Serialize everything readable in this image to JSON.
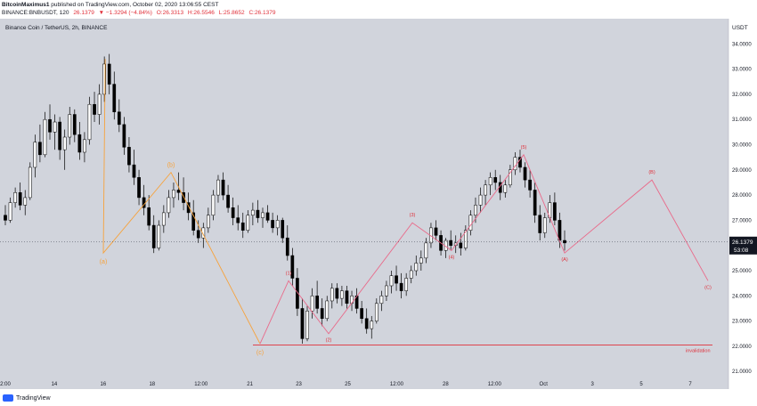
{
  "header": {
    "author": "BitcoinMaximus1",
    "published": "published on TradingView.com, October 02, 2020 13:06:55 CEST",
    "pair": "BINANCE:BNBUSDT, 120",
    "last": "26.1379",
    "change": "▼ −1.3294 (−4.84%)",
    "open": "O:26.3313",
    "high": "H:26.5546",
    "low": "L:25.8652",
    "close": "C:26.1379"
  },
  "footer": {
    "brand": "TradingView"
  },
  "chart_data": {
    "type": "candlestick",
    "title": "Binance Coin / TetherUS, 2h, BINANCE",
    "currency": "USDT",
    "ylim": [
      20.3,
      35.0
    ],
    "y_ticks": [
      "21.0000",
      "22.0000",
      "23.0000",
      "24.0000",
      "25.0000",
      "26.0000",
      "27.0000",
      "28.0000",
      "29.0000",
      "30.0000",
      "31.0000",
      "32.0000",
      "33.0000",
      "34.0000"
    ],
    "x_ticks": [
      "2:00",
      "14",
      "16",
      "18",
      "12:00",
      "21",
      "23",
      "25",
      "12:00",
      "28",
      "12:00",
      "Oct",
      "3",
      "5",
      "7"
    ],
    "price_label": "26.1379",
    "countdown_label": "53:08",
    "price_color": "#131722",
    "colors": {
      "up": "#ffffff",
      "down": "#000000",
      "orange": "#f7a23b",
      "pink": "#e96a8a",
      "red": "#e0303a",
      "background": "#d1d4dc"
    },
    "candles": [
      [
        27.2,
        27.6,
        26.8,
        27.0
      ],
      [
        27.0,
        27.9,
        26.9,
        27.7
      ],
      [
        27.7,
        28.3,
        27.5,
        28.1
      ],
      [
        28.1,
        28.5,
        27.4,
        27.6
      ],
      [
        27.6,
        28.2,
        27.2,
        27.9
      ],
      [
        27.9,
        29.3,
        27.8,
        29.1
      ],
      [
        29.1,
        30.4,
        28.7,
        30.1
      ],
      [
        30.1,
        30.8,
        29.3,
        29.6
      ],
      [
        29.6,
        31.3,
        29.5,
        31.0
      ],
      [
        31.0,
        31.6,
        30.2,
        30.5
      ],
      [
        30.5,
        31.2,
        29.8,
        30.9
      ],
      [
        30.9,
        31.1,
        29.4,
        29.8
      ],
      [
        29.8,
        30.6,
        29.0,
        30.3
      ],
      [
        30.3,
        31.5,
        30.0,
        31.2
      ],
      [
        31.2,
        31.4,
        30.1,
        30.4
      ],
      [
        30.4,
        30.9,
        29.4,
        29.7
      ],
      [
        29.7,
        30.5,
        29.3,
        30.2
      ],
      [
        30.2,
        31.9,
        30.0,
        31.6
      ],
      [
        31.6,
        32.1,
        30.9,
        31.2
      ],
      [
        31.2,
        32.4,
        30.8,
        32.0
      ],
      [
        32.0,
        33.5,
        31.7,
        33.2
      ],
      [
        33.2,
        33.6,
        32.0,
        32.4
      ],
      [
        32.4,
        32.9,
        31.0,
        31.3
      ],
      [
        31.3,
        31.8,
        30.5,
        30.8
      ],
      [
        30.8,
        31.1,
        29.6,
        29.9
      ],
      [
        29.9,
        30.3,
        28.9,
        29.2
      ],
      [
        29.2,
        29.8,
        28.4,
        28.7
      ],
      [
        28.7,
        29.0,
        27.6,
        27.9
      ],
      [
        27.9,
        28.4,
        27.2,
        27.5
      ],
      [
        27.5,
        28.0,
        26.6,
        26.8
      ],
      [
        26.8,
        27.2,
        25.7,
        25.9
      ],
      [
        25.9,
        27.0,
        25.8,
        26.8
      ],
      [
        26.8,
        27.6,
        26.5,
        27.3
      ],
      [
        27.3,
        28.2,
        27.1,
        27.9
      ],
      [
        27.9,
        28.5,
        27.5,
        28.2
      ],
      [
        28.2,
        28.9,
        27.8,
        28.1
      ],
      [
        28.1,
        28.7,
        27.4,
        27.7
      ],
      [
        27.7,
        28.1,
        27.0,
        27.3
      ],
      [
        27.3,
        27.8,
        26.4,
        26.6
      ],
      [
        26.6,
        27.0,
        26.1,
        26.3
      ],
      [
        26.3,
        26.9,
        25.9,
        26.7
      ],
      [
        26.7,
        27.5,
        26.5,
        27.2
      ],
      [
        27.2,
        28.2,
        27.0,
        28.0
      ],
      [
        28.0,
        28.8,
        27.7,
        28.6
      ],
      [
        28.6,
        28.9,
        27.8,
        28.0
      ],
      [
        28.0,
        28.4,
        27.3,
        27.5
      ],
      [
        27.5,
        27.9,
        26.8,
        27.1
      ],
      [
        27.1,
        27.6,
        26.6,
        26.9
      ],
      [
        26.9,
        27.3,
        26.3,
        26.6
      ],
      [
        26.6,
        27.4,
        26.5,
        27.2
      ],
      [
        27.2,
        27.7,
        26.8,
        27.4
      ],
      [
        27.4,
        27.8,
        26.9,
        27.1
      ],
      [
        27.1,
        27.5,
        26.7,
        27.3
      ],
      [
        27.3,
        27.6,
        26.9,
        27.0
      ],
      [
        27.0,
        27.3,
        26.5,
        26.7
      ],
      [
        26.7,
        27.2,
        26.4,
        27.0
      ],
      [
        27.0,
        27.1,
        26.1,
        26.3
      ],
      [
        26.3,
        26.8,
        25.4,
        25.6
      ],
      [
        25.6,
        25.9,
        24.4,
        24.7
      ],
      [
        24.7,
        25.1,
        23.2,
        23.5
      ],
      [
        23.5,
        23.9,
        22.1,
        22.3
      ],
      [
        22.3,
        23.6,
        22.2,
        23.4
      ],
      [
        23.4,
        24.3,
        23.1,
        24.0
      ],
      [
        24.0,
        24.6,
        23.3,
        23.5
      ],
      [
        23.5,
        23.9,
        22.8,
        23.1
      ],
      [
        23.1,
        24.0,
        23.0,
        23.8
      ],
      [
        23.8,
        24.5,
        23.5,
        24.3
      ],
      [
        24.3,
        24.5,
        23.7,
        23.9
      ],
      [
        23.9,
        24.4,
        23.6,
        24.2
      ],
      [
        24.2,
        24.4,
        23.5,
        23.7
      ],
      [
        23.7,
        24.2,
        23.4,
        24.0
      ],
      [
        24.0,
        24.3,
        23.3,
        23.5
      ],
      [
        23.5,
        23.8,
        22.9,
        23.1
      ],
      [
        23.1,
        23.5,
        22.5,
        22.7
      ],
      [
        22.7,
        23.2,
        22.3,
        23.0
      ],
      [
        23.0,
        23.9,
        22.9,
        23.7
      ],
      [
        23.7,
        24.2,
        23.4,
        24.0
      ],
      [
        24.0,
        24.6,
        23.8,
        24.4
      ],
      [
        24.4,
        25.0,
        24.1,
        24.8
      ],
      [
        24.8,
        25.2,
        24.2,
        24.5
      ],
      [
        24.5,
        24.9,
        23.9,
        24.2
      ],
      [
        24.2,
        24.9,
        24.0,
        24.7
      ],
      [
        24.7,
        25.2,
        24.5,
        25.0
      ],
      [
        25.0,
        25.6,
        24.8,
        25.3
      ],
      [
        25.3,
        25.8,
        25.0,
        25.5
      ],
      [
        25.5,
        26.3,
        25.3,
        26.1
      ],
      [
        26.1,
        26.9,
        25.9,
        26.7
      ],
      [
        26.7,
        27.0,
        26.2,
        26.4
      ],
      [
        26.4,
        26.6,
        25.6,
        25.8
      ],
      [
        25.8,
        26.3,
        25.5,
        26.2
      ],
      [
        26.2,
        26.6,
        25.8,
        26.0
      ],
      [
        26.0,
        26.4,
        25.7,
        26.1
      ],
      [
        26.1,
        26.5,
        25.6,
        25.9
      ],
      [
        25.9,
        26.8,
        25.8,
        26.6
      ],
      [
        26.6,
        27.4,
        26.4,
        27.2
      ],
      [
        27.2,
        27.9,
        26.9,
        27.6
      ],
      [
        27.6,
        28.3,
        27.3,
        28.0
      ],
      [
        28.0,
        28.6,
        27.6,
        28.4
      ],
      [
        28.4,
        28.9,
        28.0,
        28.7
      ],
      [
        28.7,
        29.0,
        28.2,
        28.5
      ],
      [
        28.5,
        28.8,
        27.8,
        28.1
      ],
      [
        28.1,
        28.6,
        27.9,
        28.4
      ],
      [
        28.4,
        29.2,
        28.3,
        29.0
      ],
      [
        29.0,
        29.7,
        28.8,
        29.5
      ],
      [
        29.5,
        29.8,
        28.9,
        29.1
      ],
      [
        29.1,
        29.3,
        28.3,
        28.6
      ],
      [
        28.6,
        29.0,
        27.9,
        28.2
      ],
      [
        28.2,
        28.5,
        26.9,
        27.2
      ],
      [
        27.2,
        27.6,
        26.2,
        26.5
      ],
      [
        26.5,
        27.3,
        26.3,
        27.1
      ],
      [
        27.1,
        28.0,
        26.9,
        27.7
      ],
      [
        27.7,
        28.1,
        26.8,
        27.0
      ],
      [
        27.0,
        27.3,
        25.9,
        26.2
      ],
      [
        26.2,
        26.6,
        25.8,
        26.1
      ]
    ],
    "invalidation": {
      "value": 22.05,
      "label": "invalidation"
    },
    "orange_wave": [
      {
        "label": "(a)",
        "y": 25.7
      },
      {
        "label": "(b)",
        "y": 28.9
      },
      {
        "label": "(c)",
        "y": 22.1
      }
    ],
    "pink_wave": [
      {
        "label": "(1)",
        "y": 24.6
      },
      {
        "label": "(2)",
        "y": 22.5
      },
      {
        "label": "(3)",
        "y": 26.9
      },
      {
        "label": "(4)",
        "y": 25.8
      },
      {
        "label": "(5)",
        "y": 29.6
      },
      {
        "label": "(A)",
        "y": 25.7
      },
      {
        "label": "(B)",
        "y": 28.6
      },
      {
        "label": "(C)",
        "y": 24.6
      }
    ]
  }
}
